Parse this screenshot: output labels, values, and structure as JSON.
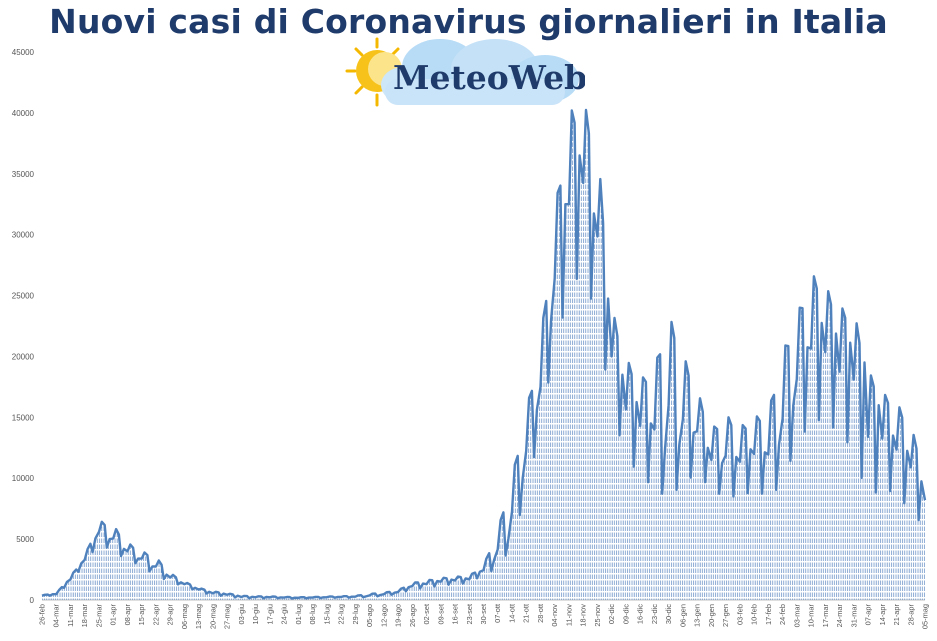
{
  "chart_data": {
    "type": "area",
    "title": "Nuovi casi di Coronavirus giornalieri in Italia",
    "xlabel": "",
    "ylabel": "",
    "ylim": [
      0,
      45000
    ],
    "yticks": [
      0,
      5000,
      10000,
      15000,
      20000,
      25000,
      30000,
      35000,
      40000,
      45000
    ],
    "categories": [
      "26-feb",
      "04-mar",
      "11-mar",
      "18-mar",
      "25-mar",
      "01-apr",
      "08-apr",
      "15-apr",
      "22-apr",
      "29-apr",
      "06-mag",
      "13-mag",
      "20-mag",
      "27-mag",
      "03-giu",
      "10-giu",
      "17-giu",
      "24-giu",
      "01-lug",
      "08-lug",
      "15-lug",
      "22-lug",
      "29-lug",
      "05-ago",
      "12-ago",
      "19-ago",
      "26-ago",
      "02-set",
      "09-set",
      "16-set",
      "23-set",
      "30-set",
      "07-ott",
      "14-ott",
      "21-ott",
      "28-ott",
      "04-nov",
      "11-nov",
      "18-nov",
      "25-nov",
      "02-dic",
      "09-dic",
      "16-dic",
      "23-dic",
      "30-dic",
      "06-gen",
      "13-gen",
      "20-gen",
      "27-gen",
      "03-feb",
      "10-feb",
      "17-feb",
      "24-feb",
      "03-mar",
      "10-mar",
      "17-mar",
      "24-mar",
      "31-mar",
      "07-apr",
      "14-apr",
      "21-apr",
      "28-apr",
      "05-mag"
    ],
    "series": [
      {
        "values": [
          400,
          500,
          1800,
          3400,
          5600,
          4800,
          4000,
          3200,
          2600,
          1900,
          1300,
          900,
          600,
          500,
          300,
          250,
          250,
          200,
          180,
          200,
          230,
          250,
          280,
          300,
          450,
          650,
          1200,
          1400,
          1600,
          1700,
          1800,
          2500,
          3600,
          5500,
          11500,
          17000,
          25000,
          35000,
          37000,
          30000,
          23000,
          17000,
          16000,
          14000,
          12000,
          13000,
          14000,
          12000,
          11000,
          12000,
          12500,
          12000,
          13000,
          17000,
          22000,
          23000,
          21500,
          21000,
          19000,
          15000,
          13000,
          12000,
          9000
        ],
        "peaks": [
          400,
          550,
          1900,
          3600,
          6500,
          6100,
          4700,
          4000,
          3500,
          2200,
          1500,
          1000,
          700,
          550,
          350,
          300,
          300,
          250,
          230,
          250,
          280,
          300,
          350,
          500,
          600,
          800,
          1400,
          1600,
          1800,
          1900,
          2000,
          2800,
          5700,
          10000,
          15500,
          21000,
          31800,
          40000,
          41000,
          37200,
          24000,
          19800,
          18100,
          19000,
          23500,
          20200,
          17200,
          14000,
          15200,
          14200,
          15000,
          15400,
          20300,
          23300,
          26800,
          25700,
          24000,
          23700,
          18800,
          17000,
          16200,
          14300,
          10600
        ],
        "troughs": [
          300,
          400,
          1500,
          3000,
          4700,
          4000,
          3300,
          2800,
          2000,
          1500,
          1100,
          700,
          400,
          300,
          150,
          150,
          150,
          140,
          130,
          150,
          180,
          200,
          200,
          250,
          350,
          500,
          900,
          1000,
          1200,
          1300,
          1400,
          2100,
          2600,
          4500,
          9000,
          14000,
          21000,
          25000,
          27500,
          22500,
          16000,
          11500,
          10500,
          9000,
          8500,
          9500,
          10500,
          9000,
          8500,
          8500,
          9000,
          8500,
          9500,
          13000,
          14500,
          15000,
          13500,
          12500,
          8000,
          9500,
          8500,
          7500,
          5800
        ]
      }
    ],
    "colors": {
      "line": "#4f81bd",
      "fill_stripe": "#5a86c0",
      "title": "#1f3b6b",
      "axis_text": "#555555",
      "gridline": "#bfbfbf"
    }
  },
  "logo": {
    "text": "MeteoWeb",
    "colors": {
      "sun": "#f5b800",
      "cloud": "#aed4f2",
      "text": "#1f3b6b"
    }
  }
}
